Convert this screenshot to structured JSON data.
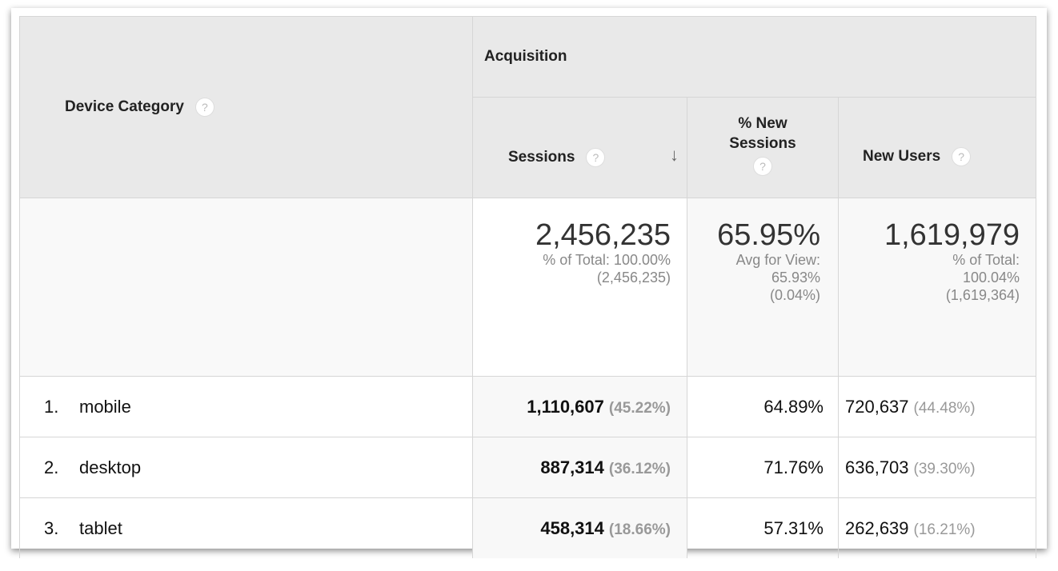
{
  "header": {
    "dimension": "Device Category",
    "group": "Acquisition",
    "columns": [
      {
        "label": "Sessions",
        "sorted": "descending"
      },
      {
        "label": "% New Sessions"
      },
      {
        "label": "New Users"
      }
    ]
  },
  "summary": {
    "sessions": {
      "value": "2,456,235",
      "line1": "% of Total: 100.00%",
      "line2": "(2,456,235)"
    },
    "new_sessions": {
      "value": "65.95%",
      "line1": "Avg for View:",
      "line2": "65.93%",
      "line3": "(0.04%)"
    },
    "new_users": {
      "value": "1,619,979",
      "line1": "% of Total:",
      "line2": "100.04%",
      "line3": "(1,619,364)"
    }
  },
  "rows": [
    {
      "index": "1.",
      "device": "mobile",
      "sessions": "1,110,607",
      "sessions_pct": "(45.22%)",
      "new_sessions": "64.89%",
      "new_users": "720,637",
      "new_users_pct": "(44.48%)"
    },
    {
      "index": "2.",
      "device": "desktop",
      "sessions": "887,314",
      "sessions_pct": "(36.12%)",
      "new_sessions": "71.76%",
      "new_users": "636,703",
      "new_users_pct": "(39.30%)"
    },
    {
      "index": "3.",
      "device": "tablet",
      "sessions": "458,314",
      "sessions_pct": "(18.66%)",
      "new_sessions": "57.31%",
      "new_users": "262,639",
      "new_users_pct": "(16.21%)"
    }
  ],
  "icons": {
    "help": "?",
    "sort": "↓"
  }
}
